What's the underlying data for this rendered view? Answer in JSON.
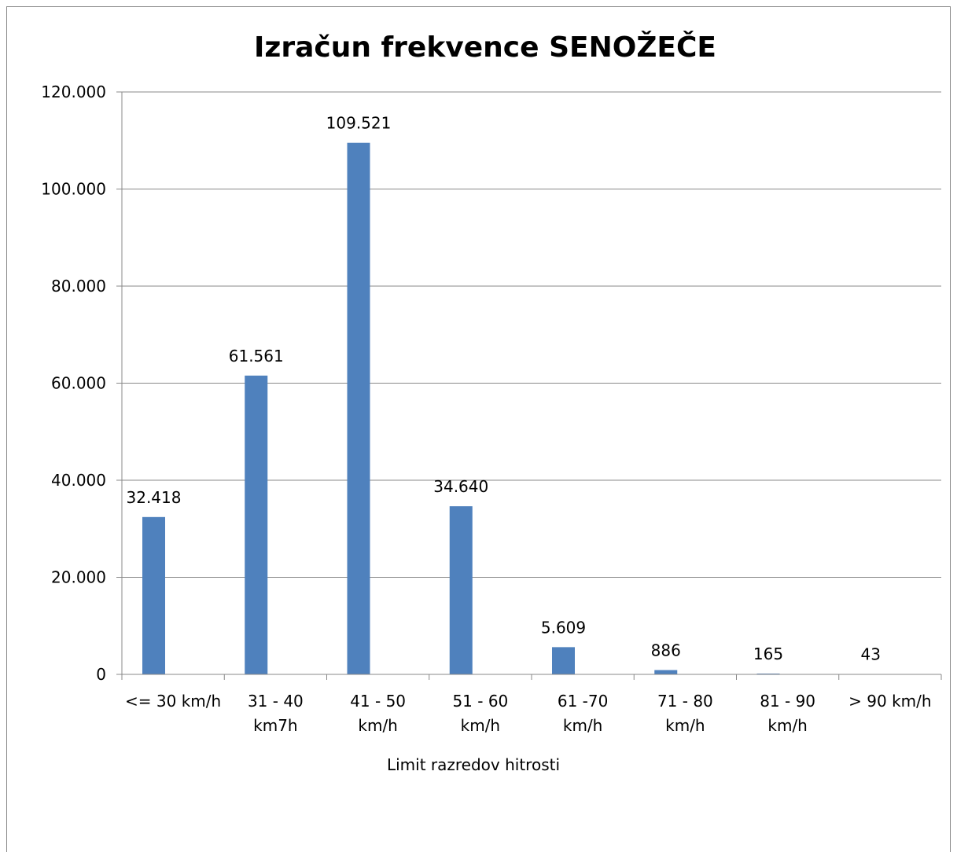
{
  "chart_data": {
    "type": "bar",
    "title": "Izračun frekvence SENOŽEČE",
    "x_label": "Limit razredov hitrosti",
    "categories": [
      "<= 30 km/h",
      "31 - 40 km7h",
      "41 - 50 km/h",
      "51 - 60 km/h",
      "61 -70 km/h",
      "71 - 80 km/h",
      "81 - 90 km/h",
      "> 90 km/h"
    ],
    "values": [
      32418,
      61561,
      109521,
      34640,
      5609,
      886,
      165,
      43
    ],
    "value_labels": [
      "32.418",
      "61.561",
      "109.521",
      "34.640",
      "5.609",
      "886",
      "165",
      "43"
    ],
    "color": "#4f81bd",
    "ylim": [
      0,
      120000
    ],
    "yticks": [
      0,
      {
        "value": 20000,
        "label": "20.000"
      },
      {
        "value": 40000,
        "label": "40.000"
      },
      {
        "value": 60000,
        "label": "60.000"
      },
      {
        "value": 80000,
        "label": "80.000"
      },
      {
        "value": 100000,
        "label": "100.000"
      },
      {
        "value": 120000,
        "label": "120.000"
      }
    ],
    "grid": true
  }
}
